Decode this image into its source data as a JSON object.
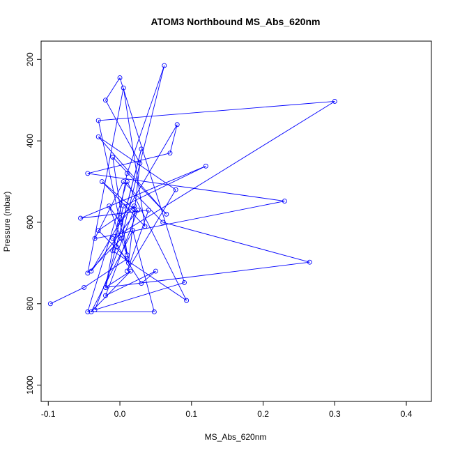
{
  "chart_data": {
    "type": "line",
    "title": "ATOM3 Northbound MS_Abs_620nm",
    "xlabel": "MS_Abs_620nm",
    "ylabel": "Pressure (mbar)",
    "xlim": [
      -0.11,
      0.435
    ],
    "ylim": [
      1040,
      155
    ],
    "y_reversed": true,
    "x_ticks": [
      -0.1,
      0.0,
      0.1,
      0.2,
      0.3,
      0.4
    ],
    "x_tick_labels": [
      "-0.1",
      "0.0",
      "0.1",
      "0.2",
      "0.3",
      "0.4"
    ],
    "y_ticks": [
      200,
      400,
      600,
      800,
      1000
    ],
    "y_tick_labels": [
      "200",
      "400",
      "600",
      "800",
      "1000"
    ],
    "grid": false,
    "series": [
      {
        "color": "#0000ff",
        "marker": "open-circle",
        "x": [
          -0.097,
          -0.05,
          0.01,
          -0.03,
          0.02,
          0.0,
          -0.04,
          0.025,
          -0.02,
          0.05,
          0.03,
          -0.01,
          0.3,
          -0.03,
          0.01,
          -0.015,
          0.0,
          0.08,
          0.07,
          -0.045,
          0.23,
          -0.035,
          0.005,
          0.06,
          0.265,
          -0.02,
          0.015,
          -0.04,
          0.018,
          0.048,
          -0.045,
          0.01,
          0.093,
          -0.01,
          0.005,
          0.12,
          -0.055,
          0.04,
          0.01,
          0.078,
          -0.03,
          0.065,
          -0.01,
          0.012,
          0.028,
          -0.02,
          0.0,
          0.09,
          -0.035,
          0.02,
          -0.025,
          0.035,
          0.005,
          -0.045,
          0.002,
          0.062,
          0.01,
          -0.02,
          0.03,
          -0.005
        ],
        "y": [
          800,
          760,
          690,
          620,
          560,
          600,
          720,
          570,
          780,
          720,
          750,
          640,
          303,
          350,
          680,
          560,
          600,
          360,
          430,
          480,
          548,
          640,
          500,
          600,
          698,
          760,
          720,
          820,
          620,
          820,
          820,
          500,
          792,
          670,
          560,
          462,
          590,
          570,
          720,
          520,
          390,
          580,
          440,
          700,
          455,
          300,
          245,
          748,
          815,
          568,
          500,
          610,
          270,
          725,
          640,
          215,
          480,
          760,
          420,
          660
        ]
      }
    ]
  }
}
